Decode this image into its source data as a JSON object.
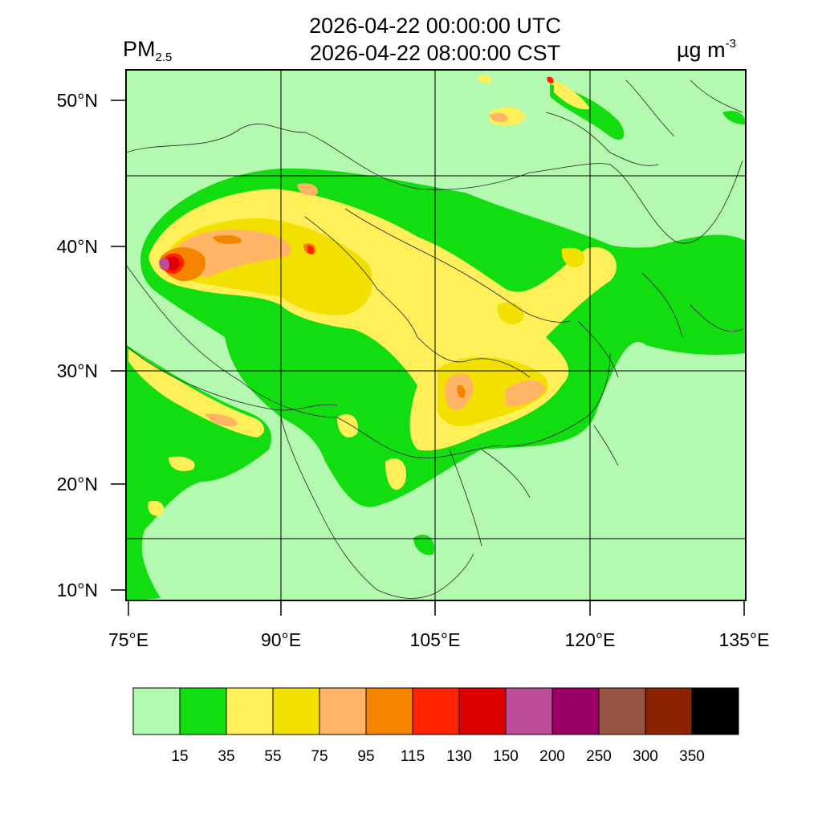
{
  "header": {
    "title_utc": "2026-04-22 00:00:00 UTC",
    "title_local": "2026-04-22 08:00:00 CST",
    "variable": "PM",
    "variable_subscript": "2.5",
    "units": "µg m",
    "units_superscript": "-3"
  },
  "axes": {
    "lat_labels": [
      "50°N",
      "40°N",
      "30°N",
      "20°N",
      "10°N"
    ],
    "lon_labels": [
      "75°E",
      "90°E",
      "105°E",
      "120°E",
      "135°E"
    ]
  },
  "colorbar": {
    "levels": [
      "15",
      "35",
      "55",
      "75",
      "95",
      "115",
      "130",
      "150",
      "200",
      "250",
      "300",
      "350"
    ],
    "colors": [
      "#b4f9b0",
      "#11dd11",
      "#fff05a",
      "#f2e000",
      "#ffb564",
      "#f58500",
      "#ff2300",
      "#dc0000",
      "#bb4d99",
      "#990066",
      "#9a5442",
      "#8b2300",
      "#000000"
    ]
  }
}
